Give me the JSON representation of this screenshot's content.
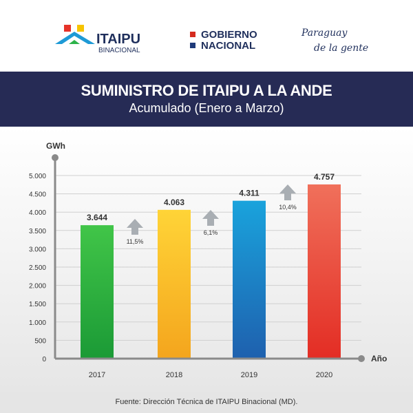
{
  "logos": {
    "itaipu_name": "ITAIPU",
    "itaipu_sub": "BINACIONAL",
    "gobierno_line1": "GOBIERNO",
    "gobierno_line2": "NACIONAL",
    "paraguay_line1": "Paraguay",
    "paraguay_line2": "de la gente"
  },
  "header": {
    "title": "SUMINISTRO DE ITAIPU A LA ANDE",
    "subtitle": "Acumulado (Enero a Marzo)"
  },
  "footer": {
    "source": "Fuente: Dirección Técnica de ITAIPU Binacional (MD)."
  },
  "chart_data": {
    "type": "bar",
    "title": "SUMINISTRO DE ITAIPU A LA ANDE",
    "subtitle": "Acumulado (Enero a Marzo)",
    "xlabel": "Año",
    "ylabel": "GWh",
    "categories": [
      "2017",
      "2018",
      "2019",
      "2020"
    ],
    "values": [
      3644,
      4063,
      4311,
      4757
    ],
    "value_labels": [
      "3.644",
      "4.063",
      "4.311",
      "4.757"
    ],
    "yticks": [
      0,
      500,
      1000,
      1500,
      2000,
      2500,
      3000,
      3500,
      4000,
      4500,
      5000
    ],
    "ytick_labels": [
      "0",
      "500",
      "1.000",
      "1.500",
      "2.000",
      "2.500",
      "3.000",
      "3.500",
      "4.000",
      "4.500",
      "5.000"
    ],
    "ylim": [
      0,
      5000
    ],
    "grid": true,
    "growth_labels": [
      "11,5%",
      "6,1%",
      "10,4%"
    ],
    "bar_colors": [
      [
        "#41c548",
        "#1b9a36"
      ],
      [
        "#ffd437",
        "#f4a51d"
      ],
      [
        "#1aa3dc",
        "#1e60ae"
      ],
      [
        "#f0705b",
        "#e32d24"
      ]
    ],
    "arrow_color": "#a9aeb3",
    "axis_color": "#8a8a8a"
  }
}
